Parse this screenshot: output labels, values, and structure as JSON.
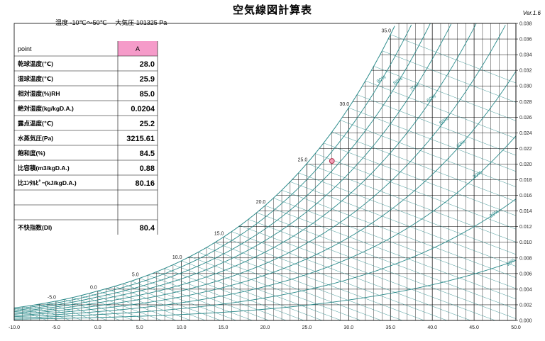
{
  "title": "空気線図計算表",
  "version": "Ver.1.6",
  "conditions": "温度 -10℃～50℃　 大気圧 101325 Pa",
  "table": {
    "header_label": "point",
    "header_value": "A",
    "rows": [
      {
        "label": "乾球温度(℃)",
        "value": "28.0"
      },
      {
        "label": "湿球温度(℃)",
        "value": "25.9"
      },
      {
        "label": "相対湿度(%)RH",
        "value": "85.0"
      },
      {
        "label": "絶対湿度(kg/kgD.A.)",
        "value": "0.0204"
      },
      {
        "label": "露点温度(℃)",
        "value": "25.2"
      },
      {
        "label": "水蒸気圧(Pa)",
        "value": "3215.61"
      },
      {
        "label": "飽和度(%)",
        "value": "84.5"
      },
      {
        "label": "比容積(m3/kgD.A.)",
        "value": "0.88"
      },
      {
        "label": "比ｴﾝﾀﾙﾋﾟｰ(kJ/kgD.A.)",
        "value": "80.16"
      },
      {
        "label": "",
        "value": ""
      },
      {
        "label": "",
        "value": ""
      },
      {
        "label": "不快指数(DI)",
        "value": "80.4"
      }
    ]
  },
  "colors": {
    "curve": "#2b8b8b",
    "grid": "#000000",
    "point_fill": "#f2a0b8",
    "point_stroke": "#b0304a",
    "header_fill": "#f59bc9"
  },
  "chart_data": {
    "type": "scatter",
    "x_ticks": [
      "-10.0",
      "-5.0",
      "0.0",
      "5.0",
      "10.0",
      "15.0",
      "20.0",
      "25.0",
      "30.0",
      "35.0",
      "40.0",
      "45.0",
      "50.0"
    ],
    "y_ticks": [
      "0.000",
      "0.002",
      "0.004",
      "0.006",
      "0.008",
      "0.010",
      "0.012",
      "0.014",
      "0.016",
      "0.018",
      "0.020",
      "0.022",
      "0.024",
      "0.026",
      "0.028",
      "0.030",
      "0.032",
      "0.034",
      "0.036",
      "0.038"
    ],
    "xlim": [
      -10,
      50
    ],
    "ylim": [
      0,
      0.038
    ],
    "pressure_pa": 101325,
    "grid": true,
    "saturation_labels": [
      -5,
      0,
      5,
      10,
      15,
      20,
      25,
      30,
      35
    ],
    "rh_curves": [
      10,
      20,
      30,
      40,
      50,
      60,
      70,
      80,
      90
    ],
    "rh_labels": [
      "10%",
      "20%",
      "30%",
      "40%",
      "50%",
      "60%",
      "70%",
      "80%",
      "90%"
    ],
    "points": [
      {
        "name": "A",
        "x": 28.0,
        "y": 0.0204
      }
    ]
  }
}
